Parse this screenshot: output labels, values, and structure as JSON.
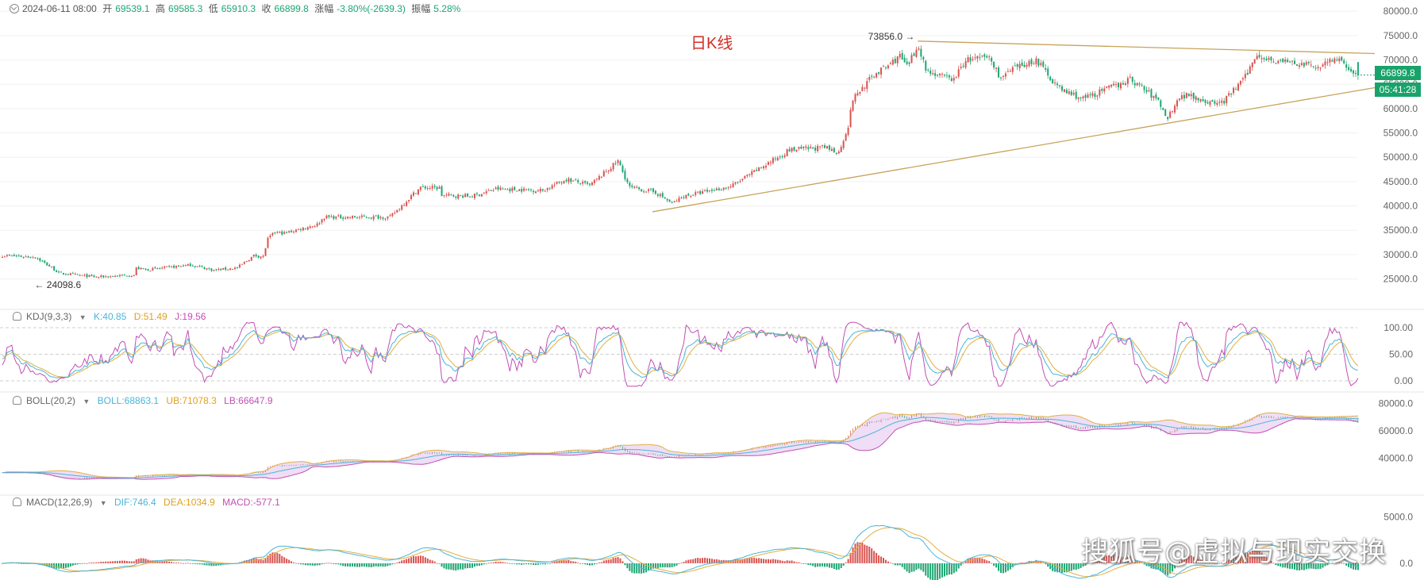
{
  "header": {
    "date": "2024-06-11 08:00",
    "open_label": "开",
    "open": "69539.1",
    "high_label": "高",
    "high": "69585.3",
    "low_label": "低",
    "low": "65910.3",
    "close_label": "收",
    "close": "66899.8",
    "change_label": "涨幅",
    "change": "-3.80%(-2639.3)",
    "amplitude_label": "振幅",
    "amplitude": "5.28%"
  },
  "title": "日K线",
  "price_tag": {
    "price": "66899.8",
    "countdown": "05:41:28"
  },
  "annotations": {
    "high": "73856.0",
    "low": "24098.6"
  },
  "kdj": {
    "name": "KDJ(9,3,3)",
    "k": "K:40.85",
    "d": "D:51.49",
    "j": "J:19.56"
  },
  "boll": {
    "name": "BOLL(20,2)",
    "mid": "BOLL:68863.1",
    "ub": "UB:71078.3",
    "lb": "LB:66647.9"
  },
  "macd": {
    "name": "MACD(12,26,9)",
    "dif": "DIF:746.4",
    "dea": "DEA:1034.9",
    "macd": "MACD:-577.1"
  },
  "watermark": "搜狐号@虚拟与现实交换",
  "colors": {
    "up": "#d9534f",
    "down": "#1ea672",
    "trendline": "#c8a35a",
    "k": "#4ab5d8",
    "d": "#e0b040",
    "j": "#c24fb4"
  },
  "chart_data": {
    "type": "candlestick",
    "main_axis": {
      "ylim": [
        22000,
        81000
      ],
      "ticks": [
        "80000.0",
        "75000.0",
        "70000.0",
        "65000.0",
        "60000.0",
        "55000.0",
        "50000.0",
        "45000.0",
        "40000.0",
        "35000.0",
        "30000.0",
        "25000.0"
      ]
    },
    "close_anchors": [
      [
        0,
        29800
      ],
      [
        14,
        29500
      ],
      [
        22,
        27000
      ],
      [
        24,
        26200
      ],
      [
        40,
        25400
      ],
      [
        56,
        25800
      ],
      [
        57,
        27200
      ],
      [
        62,
        26900
      ],
      [
        80,
        27900
      ],
      [
        90,
        26800
      ],
      [
        100,
        27300
      ],
      [
        107,
        29800
      ],
      [
        111,
        29600
      ],
      [
        113,
        33200
      ],
      [
        116,
        34600
      ],
      [
        120,
        34400
      ],
      [
        134,
        36200
      ],
      [
        137,
        37700
      ],
      [
        150,
        37700
      ],
      [
        165,
        37700
      ],
      [
        175,
        42500
      ],
      [
        178,
        43800
      ],
      [
        186,
        43700
      ],
      [
        187,
        42200
      ],
      [
        200,
        42000
      ],
      [
        210,
        43500
      ],
      [
        230,
        43200
      ],
      [
        240,
        45500
      ],
      [
        250,
        44200
      ],
      [
        262,
        49200
      ],
      [
        264,
        47000
      ],
      [
        267,
        43800
      ],
      [
        278,
        42800
      ],
      [
        285,
        40500
      ],
      [
        290,
        42000
      ],
      [
        300,
        43000
      ],
      [
        310,
        44000
      ],
      [
        320,
        47000
      ],
      [
        335,
        51500
      ],
      [
        350,
        52000
      ],
      [
        356,
        51000
      ],
      [
        360,
        56500
      ],
      [
        362,
        62000
      ],
      [
        371,
        67000
      ],
      [
        376,
        68500
      ],
      [
        382,
        70800
      ],
      [
        385,
        68500
      ],
      [
        388,
        71200
      ],
      [
        390,
        73000
      ],
      [
        393,
        68000
      ],
      [
        400,
        66500
      ],
      [
        405,
        66000
      ],
      [
        410,
        70000
      ],
      [
        420,
        70500
      ],
      [
        425,
        66200
      ],
      [
        430,
        68000
      ],
      [
        440,
        70000
      ],
      [
        445,
        67000
      ],
      [
        450,
        64000
      ],
      [
        460,
        62000
      ],
      [
        470,
        64000
      ],
      [
        480,
        66000
      ],
      [
        486,
        64000
      ],
      [
        492,
        61500
      ],
      [
        496,
        58000
      ],
      [
        500,
        62000
      ],
      [
        505,
        63000
      ],
      [
        515,
        61000
      ],
      [
        520,
        61500
      ],
      [
        529,
        66500
      ],
      [
        534,
        71200
      ],
      [
        540,
        70000
      ],
      [
        550,
        69300
      ],
      [
        560,
        68500
      ],
      [
        565,
        70200
      ],
      [
        570,
        69500
      ],
      [
        577,
        66900
      ]
    ],
    "indicator_axes": {
      "kdj": {
        "ylim": [
          0,
          100
        ],
        "ticks": [
          "100.00",
          "50.00",
          "0.00"
        ]
      },
      "boll": {
        "ylim": [
          20000,
          85000
        ],
        "ticks": [
          "80000.0",
          "60000.0",
          "40000.0"
        ]
      },
      "macd": {
        "ylim": [
          -1800,
          7000
        ],
        "ticks": [
          "5000.0",
          "0.0"
        ]
      }
    }
  }
}
